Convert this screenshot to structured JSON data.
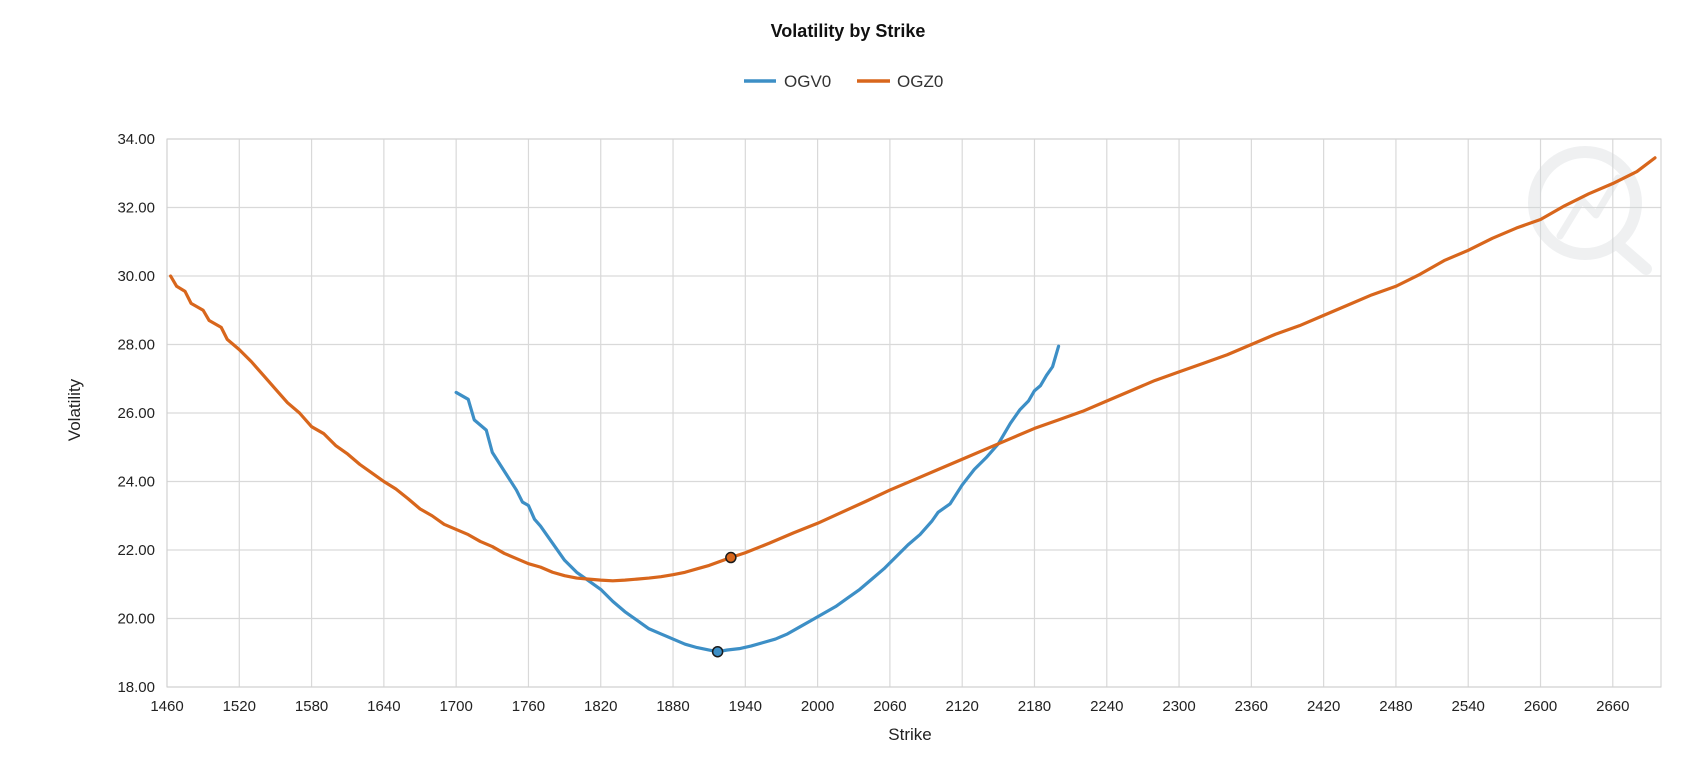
{
  "chart_data": {
    "type": "line",
    "title": "Volatility by Strike",
    "xlabel": "Strike",
    "ylabel": "Volatility",
    "xlim": [
      1460,
      2700
    ],
    "ylim": [
      18,
      34
    ],
    "x_ticks": [
      1460,
      1520,
      1580,
      1640,
      1700,
      1760,
      1820,
      1880,
      1940,
      2000,
      2060,
      2120,
      2180,
      2240,
      2300,
      2360,
      2420,
      2480,
      2540,
      2600,
      2660
    ],
    "y_ticks": [
      "18.00",
      "20.00",
      "22.00",
      "24.00",
      "26.00",
      "28.00",
      "30.00",
      "32.00",
      "34.00"
    ],
    "grid": true,
    "legend_position": "top-center",
    "series": [
      {
        "name": "OGV0",
        "color": "#3d8fc6",
        "points": [
          [
            1700,
            26.6
          ],
          [
            1710,
            26.4
          ],
          [
            1715,
            25.8
          ],
          [
            1725,
            25.5
          ],
          [
            1730,
            24.85
          ],
          [
            1740,
            24.3
          ],
          [
            1750,
            23.75
          ],
          [
            1755,
            23.4
          ],
          [
            1760,
            23.3
          ],
          [
            1765,
            22.9
          ],
          [
            1770,
            22.7
          ],
          [
            1780,
            22.2
          ],
          [
            1790,
            21.7
          ],
          [
            1800,
            21.35
          ],
          [
            1810,
            21.1
          ],
          [
            1820,
            20.85
          ],
          [
            1830,
            20.5
          ],
          [
            1840,
            20.2
          ],
          [
            1850,
            19.95
          ],
          [
            1860,
            19.7
          ],
          [
            1870,
            19.55
          ],
          [
            1880,
            19.4
          ],
          [
            1890,
            19.25
          ],
          [
            1900,
            19.15
          ],
          [
            1910,
            19.08
          ],
          [
            1917,
            19.03
          ],
          [
            1925,
            19.08
          ],
          [
            1935,
            19.12
          ],
          [
            1945,
            19.2
          ],
          [
            1955,
            19.3
          ],
          [
            1965,
            19.4
          ],
          [
            1975,
            19.55
          ],
          [
            1985,
            19.75
          ],
          [
            1995,
            19.95
          ],
          [
            2005,
            20.15
          ],
          [
            2015,
            20.35
          ],
          [
            2025,
            20.6
          ],
          [
            2035,
            20.85
          ],
          [
            2045,
            21.15
          ],
          [
            2055,
            21.45
          ],
          [
            2065,
            21.8
          ],
          [
            2075,
            22.15
          ],
          [
            2085,
            22.45
          ],
          [
            2095,
            22.85
          ],
          [
            2100,
            23.1
          ],
          [
            2110,
            23.35
          ],
          [
            2120,
            23.9
          ],
          [
            2130,
            24.35
          ],
          [
            2140,
            24.7
          ],
          [
            2150,
            25.1
          ],
          [
            2155,
            25.4
          ],
          [
            2160,
            25.7
          ],
          [
            2168,
            26.1
          ],
          [
            2175,
            26.35
          ],
          [
            2180,
            26.65
          ],
          [
            2185,
            26.8
          ],
          [
            2190,
            27.1
          ],
          [
            2195,
            27.35
          ],
          [
            2200,
            27.95
          ]
        ],
        "marker": [
          1917,
          19.03
        ]
      },
      {
        "name": "OGZ0",
        "color": "#d8661c",
        "points": [
          [
            1463,
            30.0
          ],
          [
            1468,
            29.7
          ],
          [
            1475,
            29.55
          ],
          [
            1480,
            29.2
          ],
          [
            1490,
            29.0
          ],
          [
            1495,
            28.7
          ],
          [
            1505,
            28.5
          ],
          [
            1510,
            28.15
          ],
          [
            1520,
            27.85
          ],
          [
            1530,
            27.5
          ],
          [
            1540,
            27.1
          ],
          [
            1550,
            26.7
          ],
          [
            1560,
            26.3
          ],
          [
            1570,
            26.0
          ],
          [
            1580,
            25.6
          ],
          [
            1590,
            25.4
          ],
          [
            1600,
            25.05
          ],
          [
            1610,
            24.8
          ],
          [
            1620,
            24.5
          ],
          [
            1630,
            24.25
          ],
          [
            1640,
            24.0
          ],
          [
            1650,
            23.78
          ],
          [
            1660,
            23.5
          ],
          [
            1670,
            23.2
          ],
          [
            1680,
            23.0
          ],
          [
            1690,
            22.75
          ],
          [
            1700,
            22.6
          ],
          [
            1710,
            22.45
          ],
          [
            1720,
            22.25
          ],
          [
            1730,
            22.1
          ],
          [
            1740,
            21.9
          ],
          [
            1750,
            21.75
          ],
          [
            1760,
            21.6
          ],
          [
            1770,
            21.5
          ],
          [
            1780,
            21.35
          ],
          [
            1790,
            21.25
          ],
          [
            1800,
            21.18
          ],
          [
            1810,
            21.15
          ],
          [
            1820,
            21.12
          ],
          [
            1830,
            21.1
          ],
          [
            1840,
            21.12
          ],
          [
            1850,
            21.15
          ],
          [
            1860,
            21.18
          ],
          [
            1870,
            21.22
          ],
          [
            1880,
            21.28
          ],
          [
            1890,
            21.35
          ],
          [
            1900,
            21.45
          ],
          [
            1910,
            21.55
          ],
          [
            1920,
            21.68
          ],
          [
            1928,
            21.78
          ],
          [
            1940,
            21.92
          ],
          [
            1960,
            22.2
          ],
          [
            1980,
            22.5
          ],
          [
            2000,
            22.78
          ],
          [
            2020,
            23.1
          ],
          [
            2040,
            23.42
          ],
          [
            2060,
            23.75
          ],
          [
            2080,
            24.05
          ],
          [
            2100,
            24.35
          ],
          [
            2120,
            24.65
          ],
          [
            2140,
            24.95
          ],
          [
            2160,
            25.25
          ],
          [
            2180,
            25.55
          ],
          [
            2200,
            25.8
          ],
          [
            2220,
            26.05
          ],
          [
            2240,
            26.35
          ],
          [
            2260,
            26.65
          ],
          [
            2280,
            26.95
          ],
          [
            2300,
            27.2
          ],
          [
            2320,
            27.45
          ],
          [
            2340,
            27.7
          ],
          [
            2360,
            28.0
          ],
          [
            2380,
            28.3
          ],
          [
            2400,
            28.55
          ],
          [
            2420,
            28.85
          ],
          [
            2440,
            29.15
          ],
          [
            2460,
            29.45
          ],
          [
            2480,
            29.7
          ],
          [
            2500,
            30.05
          ],
          [
            2520,
            30.45
          ],
          [
            2540,
            30.75
          ],
          [
            2560,
            31.1
          ],
          [
            2580,
            31.4
          ],
          [
            2600,
            31.65
          ],
          [
            2620,
            32.05
          ],
          [
            2640,
            32.4
          ],
          [
            2660,
            32.7
          ],
          [
            2680,
            33.05
          ],
          [
            2695,
            33.45
          ]
        ],
        "marker": [
          1928,
          21.78
        ]
      }
    ]
  }
}
